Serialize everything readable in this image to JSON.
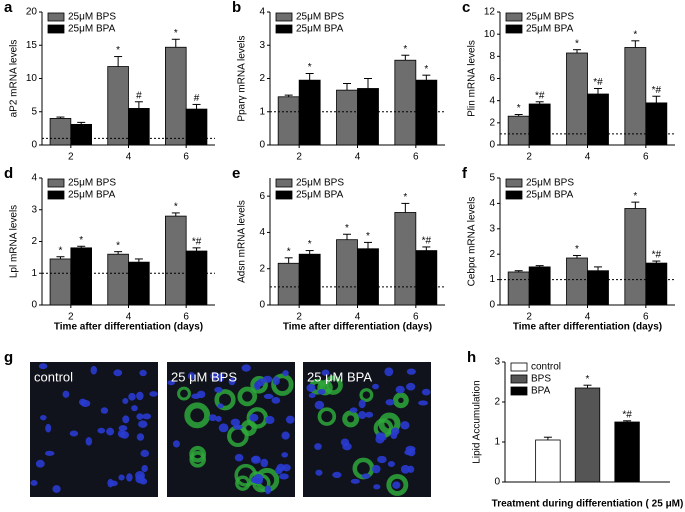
{
  "chart_data": [
    {
      "type": "bar",
      "panel": "a",
      "ylabel": "aP2 mRNA levels",
      "categories": [
        "2",
        "4",
        "6"
      ],
      "ylim": [
        0,
        20
      ],
      "yticks": [
        0,
        5,
        10,
        15,
        20
      ],
      "refline": 1,
      "series": [
        {
          "name": "25μM BPS",
          "color": "#6e6e6e",
          "values": [
            4.0,
            11.8,
            14.7
          ],
          "errors": [
            0.2,
            1.5,
            1.2
          ],
          "marks": [
            null,
            "*",
            "*"
          ]
        },
        {
          "name": "25μM BPA",
          "color": "#000000",
          "values": [
            3.1,
            5.5,
            5.4
          ],
          "errors": [
            0.3,
            1.0,
            0.7
          ],
          "marks": [
            null,
            "#",
            "#"
          ]
        }
      ]
    },
    {
      "type": "bar",
      "panel": "b",
      "ylabel": "Pparγ mRNA levels",
      "categories": [
        "2",
        "4",
        "6"
      ],
      "ylim": [
        0,
        4
      ],
      "yticks": [
        0,
        1,
        2,
        3,
        4
      ],
      "refline": 1,
      "series": [
        {
          "name": "25μM BPS",
          "color": "#6e6e6e",
          "values": [
            1.45,
            1.65,
            2.55
          ],
          "errors": [
            0.05,
            0.2,
            0.15
          ],
          "marks": [
            null,
            null,
            "*"
          ]
        },
        {
          "name": "25μM BPA",
          "color": "#000000",
          "values": [
            1.95,
            1.7,
            1.95
          ],
          "errors": [
            0.2,
            0.3,
            0.15
          ],
          "marks": [
            "*",
            null,
            "*"
          ]
        }
      ]
    },
    {
      "type": "bar",
      "panel": "c",
      "ylabel": "Plin mRNA levels",
      "categories": [
        "2",
        "4",
        "6"
      ],
      "ylim": [
        0,
        12
      ],
      "yticks": [
        0,
        2,
        4,
        6,
        8,
        10,
        12
      ],
      "refline": 1,
      "series": [
        {
          "name": "25μM BPS",
          "color": "#6e6e6e",
          "values": [
            2.6,
            8.3,
            8.8
          ],
          "errors": [
            0.15,
            0.3,
            0.6
          ],
          "marks": [
            "*",
            "*",
            "*"
          ]
        },
        {
          "name": "25μM BPA",
          "color": "#000000",
          "values": [
            3.7,
            4.6,
            3.8
          ],
          "errors": [
            0.2,
            0.5,
            0.6
          ],
          "marks": [
            "*#",
            "*#",
            "*#"
          ]
        }
      ]
    },
    {
      "type": "bar",
      "panel": "d",
      "ylabel": "Lpl mRNA levels",
      "xlabel": "Time after differentiation (days)",
      "categories": [
        "2",
        "4",
        "6"
      ],
      "ylim": [
        0,
        4
      ],
      "yticks": [
        0,
        1,
        2,
        3,
        4
      ],
      "refline": 1,
      "series": [
        {
          "name": "25μM BPS",
          "color": "#6e6e6e",
          "values": [
            1.45,
            1.6,
            2.8
          ],
          "errors": [
            0.07,
            0.08,
            0.1
          ],
          "marks": [
            "*",
            "*",
            "*"
          ]
        },
        {
          "name": "25μM BPA",
          "color": "#000000",
          "values": [
            1.8,
            1.35,
            1.7
          ],
          "errors": [
            0.05,
            0.1,
            0.1
          ],
          "marks": [
            "*",
            null,
            "*#"
          ]
        }
      ]
    },
    {
      "type": "bar",
      "panel": "e",
      "ylabel": "Adsn mRNA levels",
      "xlabel": "Time after differentiation (days)",
      "categories": [
        "2",
        "4",
        "6"
      ],
      "ylim": [
        0,
        7
      ],
      "yticks": [
        0,
        2,
        4,
        6
      ],
      "refline": 1,
      "series": [
        {
          "name": "25μM BPS",
          "color": "#6e6e6e",
          "values": [
            2.3,
            3.6,
            5.1
          ],
          "errors": [
            0.3,
            0.3,
            0.5
          ],
          "marks": [
            "*",
            "*",
            "*"
          ]
        },
        {
          "name": "25μM BPA",
          "color": "#000000",
          "values": [
            2.8,
            3.1,
            3.0
          ],
          "errors": [
            0.2,
            0.35,
            0.2
          ],
          "marks": [
            "*",
            "*",
            "*#"
          ]
        }
      ]
    },
    {
      "type": "bar",
      "panel": "f",
      "ylabel": "Cebpα mRNA levels",
      "xlabel": "Time after differentiation (days)",
      "categories": [
        "2",
        "4",
        "6"
      ],
      "ylim": [
        0,
        5
      ],
      "yticks": [
        0,
        1,
        2,
        3,
        4,
        5
      ],
      "refline": 1,
      "series": [
        {
          "name": "25μM BPS",
          "color": "#6e6e6e",
          "values": [
            1.3,
            1.85,
            3.8
          ],
          "errors": [
            0.05,
            0.1,
            0.25
          ],
          "marks": [
            null,
            "*",
            "*"
          ]
        },
        {
          "name": "25μM BPA",
          "color": "#000000",
          "values": [
            1.5,
            1.35,
            1.65
          ],
          "errors": [
            0.05,
            0.15,
            0.08
          ],
          "marks": [
            null,
            null,
            "*#"
          ]
        }
      ]
    },
    {
      "type": "bar",
      "panel": "h",
      "ylabel": "Lipid Accumulation",
      "xlabel": "Treatment during differentiation ( 25 μM)",
      "categories": [
        null
      ],
      "ylim": [
        0,
        3
      ],
      "yticks": [
        0,
        1,
        2,
        3
      ],
      "series": [
        {
          "name": "control",
          "color": "#ffffff",
          "values": [
            1.05
          ],
          "errors": [
            0.07
          ],
          "marks": [
            null
          ]
        },
        {
          "name": "BPS",
          "color": "#555555",
          "values": [
            2.35
          ],
          "errors": [
            0.07
          ],
          "marks": [
            "*"
          ]
        },
        {
          "name": "BPA",
          "color": "#000000",
          "values": [
            1.5
          ],
          "errors": [
            0.03
          ],
          "marks": [
            "*#"
          ]
        }
      ]
    }
  ],
  "panel_g": {
    "panel": "g",
    "images": [
      {
        "label": "control"
      },
      {
        "label": "25 μM BPS"
      },
      {
        "label": "25 μM BPA"
      }
    ]
  }
}
